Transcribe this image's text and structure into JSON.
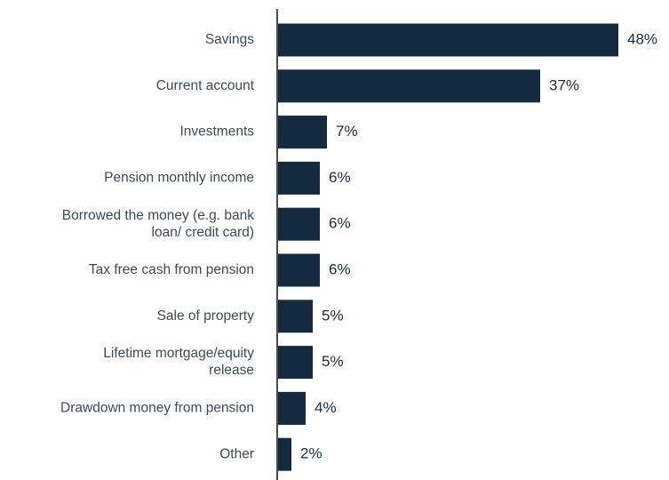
{
  "chart_data": {
    "type": "bar",
    "orientation": "horizontal",
    "title": "",
    "xlabel": "",
    "ylabel": "",
    "categories": [
      [
        "Savings"
      ],
      [
        "Current account"
      ],
      [
        "Investments"
      ],
      [
        "Pension monthly income"
      ],
      [
        "Borrowed the money (e.g. bank",
        "loan/ credit card)"
      ],
      [
        "Tax free cash from pension"
      ],
      [
        "Sale of property"
      ],
      [
        "Lifetime mortgage/equity",
        "release"
      ],
      [
        "Drawdown money from pension"
      ],
      [
        "Other"
      ]
    ],
    "values": [
      48,
      37,
      7,
      6,
      6,
      6,
      5,
      5,
      4,
      2
    ],
    "value_labels": [
      "48%",
      "37%",
      "7%",
      "6%",
      "6%",
      "6%",
      "5%",
      "5%",
      "4%",
      "2%"
    ],
    "xlim": [
      0,
      48
    ],
    "grid": false,
    "legend": "none",
    "colors": {
      "bar": "#132a40",
      "axis": "#4d4d4d"
    }
  }
}
